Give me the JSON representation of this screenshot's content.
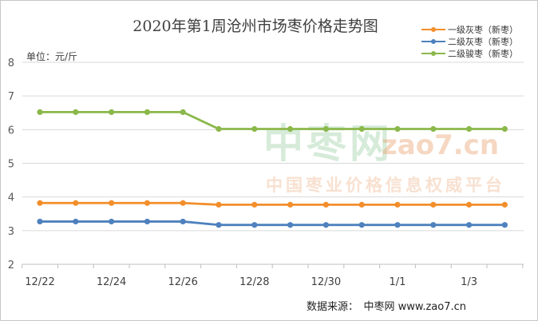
{
  "chart_data": {
    "type": "line",
    "title": "2020年第1周沧州市场枣价格走势图",
    "ylabel": "单位：元/斤",
    "xlabel": "",
    "ylim": [
      2,
      8
    ],
    "yticks": [
      2,
      3,
      4,
      5,
      6,
      7,
      8
    ],
    "categories": [
      "12/22",
      "12/23",
      "12/24",
      "12/25",
      "12/26",
      "12/27",
      "12/28",
      "12/29",
      "12/30",
      "12/31",
      "1/1",
      "1/2",
      "1/3",
      "1/4"
    ],
    "xtick_labels": [
      "12/22",
      "",
      "12/24",
      "",
      "12/26",
      "",
      "12/28",
      "",
      "12/30",
      "",
      "1/1",
      "",
      "1/3",
      ""
    ],
    "grid": "horizontal",
    "legend_position": "top-right",
    "series": [
      {
        "name": "一级灰枣（新枣）",
        "color": "#f28e2b",
        "values": [
          3.82,
          3.82,
          3.82,
          3.82,
          3.82,
          3.77,
          3.77,
          3.77,
          3.77,
          3.77,
          3.77,
          3.77,
          3.77,
          3.77
        ]
      },
      {
        "name": "二级灰枣（新枣）",
        "color": "#4e81bd",
        "values": [
          3.27,
          3.27,
          3.27,
          3.27,
          3.27,
          3.17,
          3.17,
          3.17,
          3.17,
          3.17,
          3.17,
          3.17,
          3.17,
          3.17
        ]
      },
      {
        "name": "二级骏枣（新枣）",
        "color": "#8bb84a",
        "values": [
          6.52,
          6.52,
          6.52,
          6.52,
          6.52,
          6.02,
          6.02,
          6.02,
          6.02,
          6.02,
          6.02,
          6.02,
          6.02,
          6.02
        ]
      }
    ]
  },
  "watermark": {
    "logo": "中枣网",
    "url": "zao7.cn",
    "slogan": "中国枣业价格信息权威平台"
  },
  "source": "数据来源：　中枣网 www.zao7.cn"
}
